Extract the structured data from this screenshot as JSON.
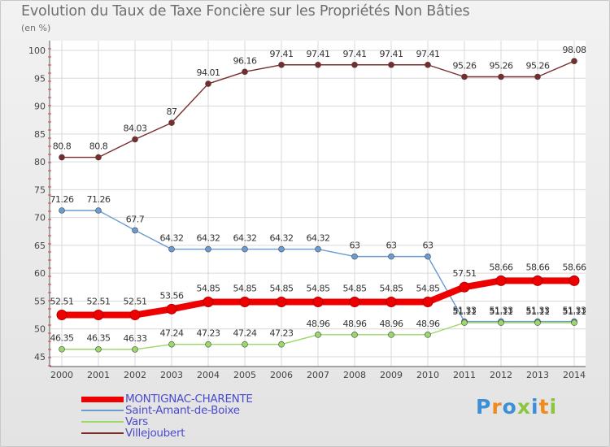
{
  "title": "Evolution du Taux de Taxe Foncière sur les Propriétés Non Bâties",
  "unit_label": "(en %)",
  "logo_text": "Proxiti",
  "chart_data": {
    "type": "line",
    "x": [
      "2000",
      "2001",
      "2002",
      "2003",
      "2004",
      "2005",
      "2006",
      "2007",
      "2008",
      "2009",
      "2010",
      "2011",
      "2012",
      "2013",
      "2014"
    ],
    "ylim": [
      45,
      100
    ],
    "yticks": [
      45,
      50,
      55,
      60,
      65,
      70,
      75,
      80,
      85,
      90,
      95,
      100
    ],
    "series": [
      {
        "name": "Villejoubert",
        "color": "#7a2b2b",
        "values": [
          80.8,
          80.8,
          84.03,
          87,
          94.01,
          96.16,
          97.41,
          97.41,
          97.41,
          97.41,
          97.41,
          95.26,
          95.26,
          95.26,
          98.08
        ],
        "labels": [
          "80.8",
          "80.8",
          "84.03",
          "87",
          "94.01",
          "96.16",
          "97.41",
          "97.41",
          "97.41",
          "97.41",
          "97.41",
          "95.26",
          "95.26",
          "95.26",
          "98.08"
        ]
      },
      {
        "name": "Saint-Amant-de-Boixe",
        "color": "#6a9bd1",
        "values": [
          71.26,
          71.26,
          67.7,
          64.32,
          64.32,
          64.32,
          64.32,
          64.32,
          63,
          63,
          63,
          51.33,
          51.33,
          51.33,
          51.33
        ],
        "labels": [
          "71.26",
          "71.26",
          "67.7",
          "64.32",
          "64.32",
          "64.32",
          "64.32",
          "64.32",
          "63",
          "63",
          "63",
          "51.33",
          "51.33",
          "51.33",
          "51.33"
        ]
      },
      {
        "name": "Vars",
        "color": "#9ad86a",
        "values": [
          46.35,
          46.35,
          46.33,
          47.24,
          47.23,
          47.24,
          47.23,
          48.96,
          48.96,
          48.96,
          48.96,
          51.11,
          51.11,
          51.11,
          51.11
        ],
        "labels": [
          "46.35",
          "46.35",
          "46.33",
          "47.24",
          "47.23",
          "47.24",
          "47.23",
          "48.96",
          "48.96",
          "48.96",
          "48.96",
          "51.11",
          "51.11",
          "51.11",
          "51.11"
        ]
      },
      {
        "name": "MONTIGNAC-CHARENTE",
        "color": "#ee0000",
        "values": [
          52.51,
          52.51,
          52.51,
          53.56,
          54.85,
          54.85,
          54.85,
          54.85,
          54.85,
          54.85,
          54.85,
          57.51,
          58.66,
          58.66,
          58.66
        ],
        "labels": [
          "52.51",
          "52.51",
          "52.51",
          "53.56",
          "54.85",
          "54.85",
          "54.85",
          "54.85",
          "54.85",
          "54.85",
          "54.85",
          "57.51",
          "58.66",
          "58.66",
          "58.66"
        ]
      }
    ],
    "legend_order": [
      "MONTIGNAC-CHARENTE",
      "Saint-Amant-de-Boixe",
      "Vars",
      "Villejoubert"
    ]
  }
}
